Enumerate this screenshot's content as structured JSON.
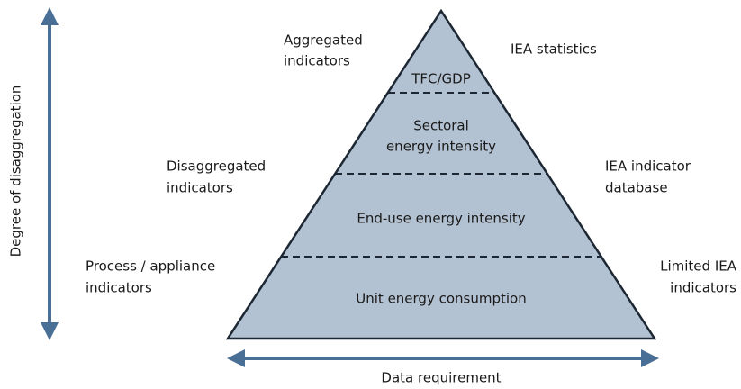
{
  "axes": {
    "vertical": "Degree of disaggregation",
    "horizontal": "Data requirement"
  },
  "pyramid": {
    "levels": [
      {
        "lines": [
          "TFC/GDP"
        ]
      },
      {
        "lines": [
          "Sectoral",
          "energy intensity"
        ]
      },
      {
        "lines": [
          "End-use energy intensity"
        ]
      },
      {
        "lines": [
          "Unit energy consumption"
        ]
      }
    ]
  },
  "left_labels": [
    {
      "lines": [
        "Aggregated",
        "indicators"
      ]
    },
    {
      "lines": [
        "Disaggregated",
        "indicators"
      ]
    },
    {
      "lines": [
        "Process / appliance",
        "indicators"
      ]
    }
  ],
  "right_labels": [
    {
      "lines": [
        "IEA statistics"
      ]
    },
    {
      "lines": [
        "IEA indicator",
        "database"
      ]
    },
    {
      "lines": [
        "Limited IEA",
        "indicators"
      ]
    }
  ]
}
